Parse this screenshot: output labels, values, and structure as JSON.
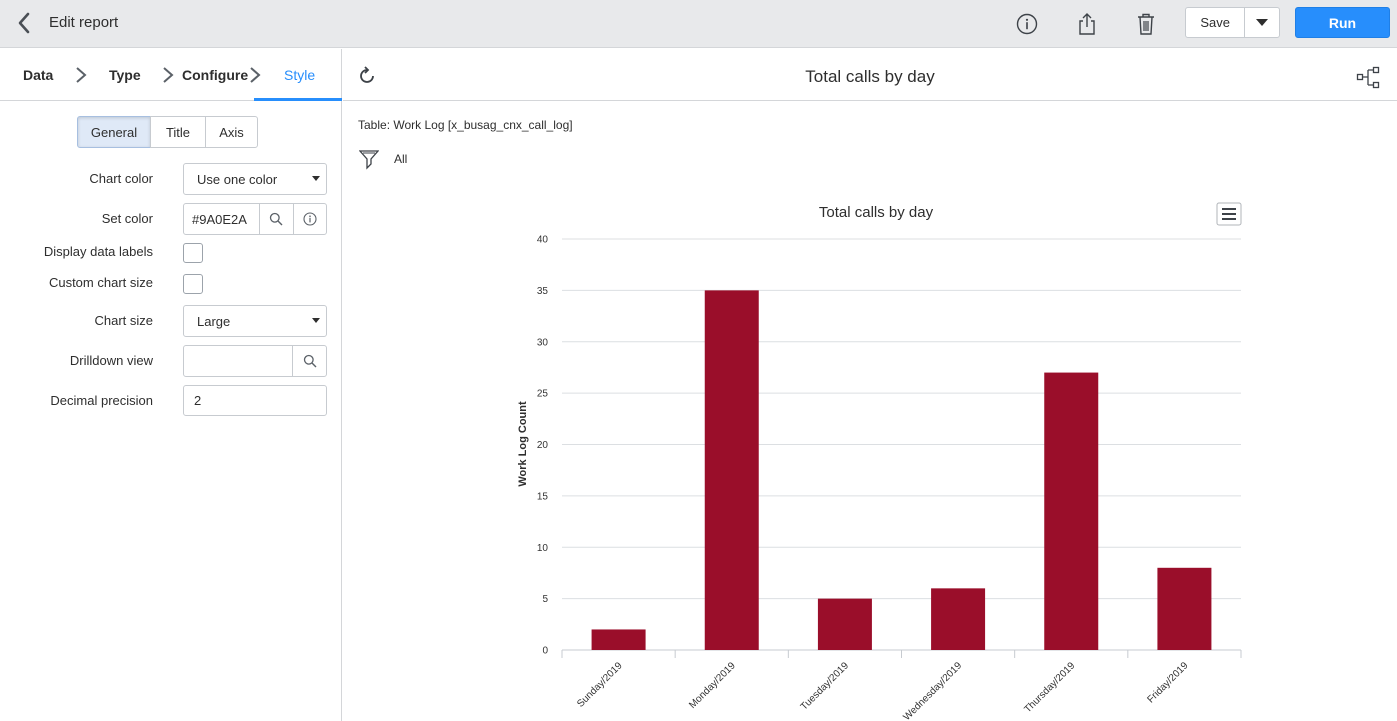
{
  "header": {
    "title": "Edit report",
    "save_label": "Save",
    "run_label": "Run"
  },
  "steps": [
    {
      "label": "Data"
    },
    {
      "label": "Type"
    },
    {
      "label": "Configure"
    },
    {
      "label": "Style",
      "active": true
    }
  ],
  "style_tabs": [
    "General",
    "Title",
    "Axis"
  ],
  "form": {
    "chart_color_label": "Chart color",
    "chart_color_value": "Use one color",
    "set_color_label": "Set color",
    "set_color_value": "#9A0E2A",
    "display_labels_label": "Display data labels",
    "custom_size_label": "Custom chart size",
    "chart_size_label": "Chart size",
    "chart_size_value": "Large",
    "drilldown_label": "Drilldown view",
    "drilldown_value": "",
    "decimal_label": "Decimal precision",
    "decimal_value": "2"
  },
  "report": {
    "title": "Total calls by day",
    "table_info": "Table: Work Log [x_busag_cnx_call_log]",
    "filter_text": "All"
  },
  "colors": {
    "bar": "#9A0E2A",
    "accent": "#278efc"
  },
  "chart_data": {
    "type": "bar",
    "title": "Total calls by day",
    "xlabel": "",
    "ylabel": "Work Log Count",
    "categories": [
      "Sunday/2019",
      "Monday/2019",
      "Tuesday/2019",
      "Wednesday/2019",
      "Thursday/2019",
      "Friday/2019"
    ],
    "values": [
      2,
      35,
      5,
      6,
      27,
      8
    ],
    "ylim": [
      0,
      40
    ],
    "yticks": [
      0,
      5,
      10,
      15,
      20,
      25,
      30,
      35,
      40
    ],
    "grid": true
  }
}
